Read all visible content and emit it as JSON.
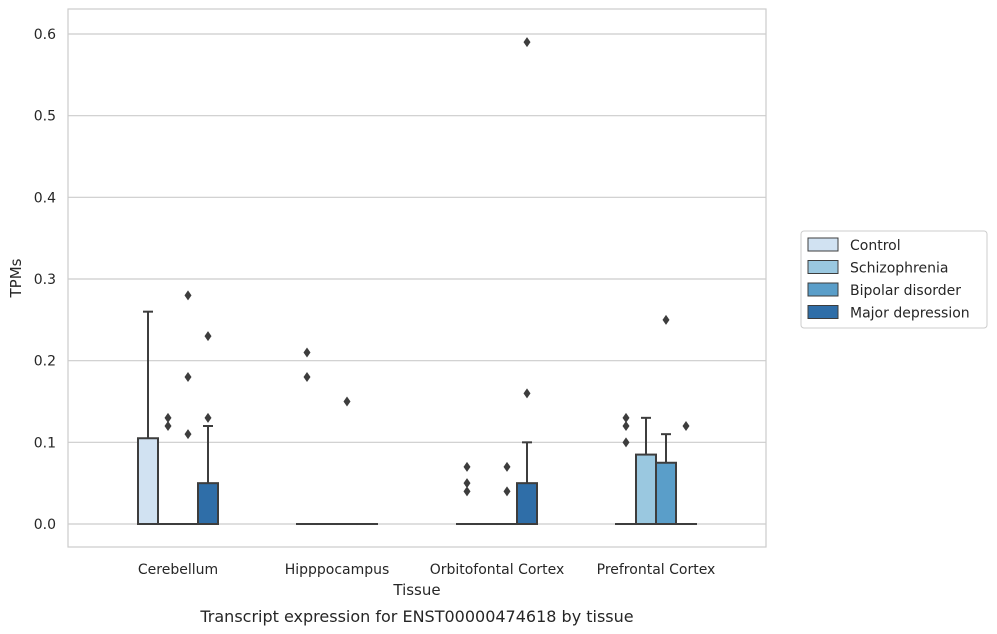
{
  "caption": "Transcript expression for ENST00000474618 by tissue",
  "chart_data": {
    "type": "box",
    "xlabel": "Tissue",
    "ylabel": "TPMs",
    "ylim": [
      -0.03,
      0.62
    ],
    "yticks": [
      0.0,
      0.1,
      0.2,
      0.3,
      0.4,
      0.5,
      0.6
    ],
    "ytick_labels": [
      "0.0",
      "0.1",
      "0.2",
      "0.3",
      "0.4",
      "0.5",
      "0.6"
    ],
    "grid": "horizontal",
    "legend_position": "right",
    "categories": [
      "Cerebellum",
      "Hipppocampus",
      "Orbitofontal Cortex",
      "Prefrontal Cortex"
    ],
    "series": [
      {
        "name": "Control",
        "color": "#d1e2f2",
        "boxes": [
          {
            "q1": 0.0,
            "median": 0.0,
            "q3": 0.105,
            "whisker_low": 0.0,
            "whisker_high": 0.26,
            "outliers": []
          },
          {
            "q1": 0.0,
            "median": 0.0,
            "q3": 0.0,
            "whisker_low": 0.0,
            "whisker_high": 0.0,
            "outliers": [
              0.18,
              0.21
            ]
          },
          {
            "q1": 0.0,
            "median": 0.0,
            "q3": 0.0,
            "whisker_low": 0.0,
            "whisker_high": 0.0,
            "outliers": [
              0.04,
              0.05,
              0.07
            ]
          },
          {
            "q1": 0.0,
            "median": 0.0,
            "q3": 0.0,
            "whisker_low": 0.0,
            "whisker_high": 0.0,
            "outliers": [
              0.1,
              0.12,
              0.13
            ]
          }
        ]
      },
      {
        "name": "Schizophrenia",
        "color": "#9ac8e0",
        "boxes": [
          {
            "q1": 0.0,
            "median": 0.0,
            "q3": 0.0,
            "whisker_low": 0.0,
            "whisker_high": 0.0,
            "outliers": [
              0.12,
              0.13
            ]
          },
          {
            "q1": 0.0,
            "median": 0.0,
            "q3": 0.0,
            "whisker_low": 0.0,
            "whisker_high": 0.0,
            "outliers": []
          },
          {
            "q1": 0.0,
            "median": 0.0,
            "q3": 0.0,
            "whisker_low": 0.0,
            "whisker_high": 0.0,
            "outliers": []
          },
          {
            "q1": 0.0,
            "median": 0.0,
            "q3": 0.085,
            "whisker_low": 0.0,
            "whisker_high": 0.13,
            "outliers": []
          }
        ]
      },
      {
        "name": "Bipolar disorder",
        "color": "#5a9ec9",
        "boxes": [
          {
            "q1": 0.0,
            "median": 0.0,
            "q3": 0.0,
            "whisker_low": 0.0,
            "whisker_high": 0.0,
            "outliers": [
              0.11,
              0.18,
              0.28
            ]
          },
          {
            "q1": 0.0,
            "median": 0.0,
            "q3": 0.0,
            "whisker_low": 0.0,
            "whisker_high": 0.0,
            "outliers": [
              0.15
            ]
          },
          {
            "q1": 0.0,
            "median": 0.0,
            "q3": 0.0,
            "whisker_low": 0.0,
            "whisker_high": 0.0,
            "outliers": [
              0.04,
              0.07
            ]
          },
          {
            "q1": 0.0,
            "median": 0.0,
            "q3": 0.075,
            "whisker_low": 0.0,
            "whisker_high": 0.11,
            "outliers": [
              0.25
            ]
          }
        ]
      },
      {
        "name": "Major depression",
        "color": "#2f6ea8",
        "boxes": [
          {
            "q1": 0.0,
            "median": 0.0,
            "q3": 0.05,
            "whisker_low": 0.0,
            "whisker_high": 0.12,
            "outliers": [
              0.13,
              0.23
            ]
          },
          {
            "q1": 0.0,
            "median": 0.0,
            "q3": 0.0,
            "whisker_low": 0.0,
            "whisker_high": 0.0,
            "outliers": []
          },
          {
            "q1": 0.0,
            "median": 0.0,
            "q3": 0.05,
            "whisker_low": 0.0,
            "whisker_high": 0.1,
            "outliers": [
              0.16,
              0.59
            ]
          },
          {
            "q1": 0.0,
            "median": 0.0,
            "q3": 0.0,
            "whisker_low": 0.0,
            "whisker_high": 0.0,
            "outliers": [
              0.12
            ]
          }
        ]
      }
    ]
  }
}
